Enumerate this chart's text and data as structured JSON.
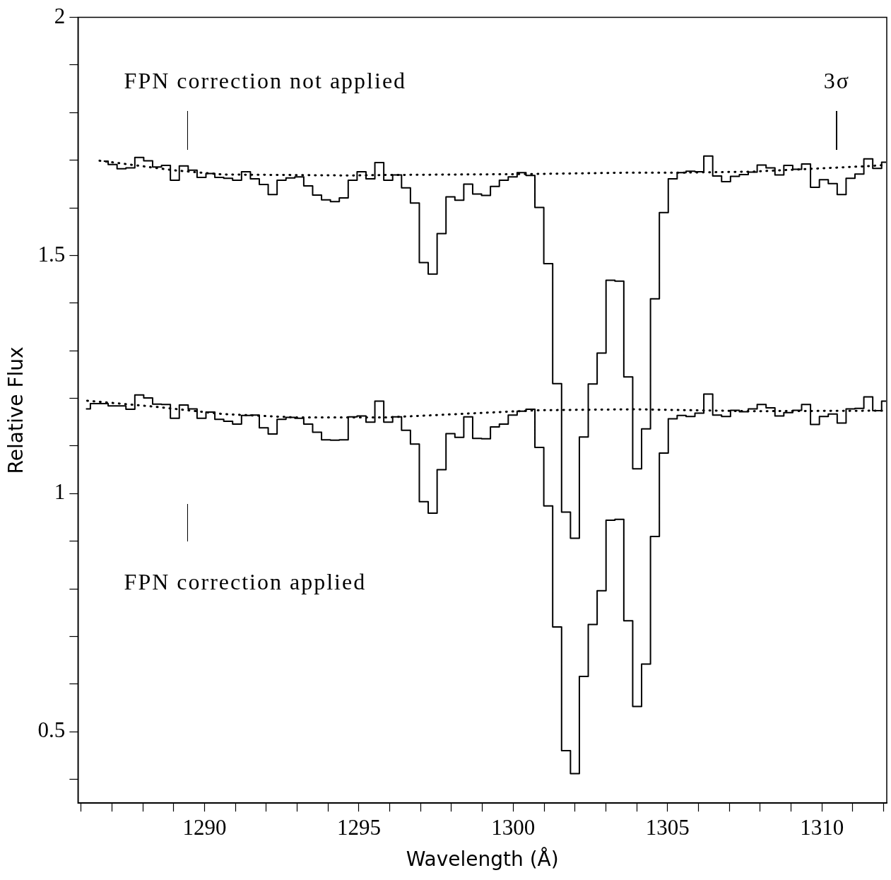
{
  "chart_data": {
    "type": "step",
    "xlabel": "Wavelength (Å)",
    "ylabel": "Relative Flux",
    "grid": false,
    "legend": false,
    "marker": "none",
    "xlim": [
      1285.9,
      1312.1
    ],
    "xticks": [
      {
        "value": 1286,
        "label": null
      },
      {
        "value": 1287,
        "label": null
      },
      {
        "value": 1288,
        "label": null
      },
      {
        "value": 1289,
        "label": null
      },
      1290,
      {
        "value": 1291,
        "label": null
      },
      {
        "value": 1292,
        "label": null
      },
      {
        "value": 1293,
        "label": null
      },
      {
        "value": 1294,
        "label": null
      },
      1295,
      {
        "value": 1296,
        "label": null
      },
      {
        "value": 1297,
        "label": null
      },
      {
        "value": 1298,
        "label": null
      },
      {
        "value": 1299,
        "label": null
      },
      1300,
      {
        "value": 1301,
        "label": null
      },
      {
        "value": 1302,
        "label": null
      },
      {
        "value": 1303,
        "label": null
      },
      {
        "value": 1304,
        "label": null
      },
      1305,
      {
        "value": 1306,
        "label": null
      },
      {
        "value": 1307,
        "label": null
      },
      {
        "value": 1308,
        "label": null
      },
      {
        "value": 1309,
        "label": null
      },
      1310,
      {
        "value": 1311,
        "label": null
      },
      {
        "value": 1312,
        "label": null
      }
    ],
    "ylim": [
      0.35,
      2
    ],
    "yticks": [
      {
        "value": 0.4,
        "label": null
      },
      0.5,
      {
        "value": 0.6,
        "label": null
      },
      {
        "value": 0.7,
        "label": null
      },
      {
        "value": 0.8,
        "label": null
      },
      {
        "value": 0.9,
        "label": null
      },
      1,
      {
        "value": 1.1,
        "label": null
      },
      {
        "value": 1.2,
        "label": null
      },
      {
        "value": 1.3,
        "label": null
      },
      {
        "value": 1.4,
        "label": null
      },
      1.5,
      {
        "value": 1.6,
        "label": null
      },
      {
        "value": 1.7,
        "label": null
      },
      {
        "value": 1.8,
        "label": null
      },
      {
        "value": 1.9,
        "label": null
      },
      2
    ],
    "annotations": [
      "FPN correction not applied",
      "3σ",
      "FPN correction applied"
    ],
    "x": [
      1286.158,
      1286.446,
      1286.734,
      1287.022,
      1287.31,
      1287.598,
      1287.886,
      1288.174,
      1288.462,
      1288.75,
      1289.038,
      1289.326,
      1289.614,
      1289.902,
      1290.19,
      1290.478,
      1290.766,
      1291.054,
      1291.342,
      1291.63,
      1291.918,
      1292.206,
      1292.494,
      1292.782,
      1293.07,
      1293.358,
      1293.646,
      1293.934,
      1294.222,
      1294.51,
      1294.798,
      1295.086,
      1295.374,
      1295.662,
      1295.95,
      1296.238,
      1296.526,
      1296.814,
      1297.102,
      1297.39,
      1297.678,
      1297.966,
      1298.254,
      1298.542,
      1298.83,
      1299.118,
      1299.406,
      1299.694,
      1299.982,
      1300.27,
      1300.558,
      1300.846,
      1301.134,
      1301.422,
      1301.71,
      1301.998,
      1302.286,
      1302.574,
      1302.862,
      1303.15,
      1303.438,
      1303.726,
      1304.014,
      1304.302,
      1304.59,
      1304.878,
      1305.166,
      1305.454,
      1305.742,
      1306.03,
      1306.318,
      1306.606,
      1306.894,
      1307.182,
      1307.47,
      1307.758,
      1308.046,
      1308.334,
      1308.622,
      1308.91,
      1309.198,
      1309.486,
      1309.774,
      1310.062,
      1310.35,
      1310.638,
      1310.926,
      1311.214,
      1311.502,
      1311.79,
      1312.078
    ],
    "series": [
      {
        "color": "#000000",
        "values": [
          null,
          null,
          1.698,
          1.691,
          1.682,
          1.684,
          1.706,
          1.699,
          1.686,
          1.689,
          1.658,
          1.688,
          1.679,
          1.664,
          1.672,
          1.664,
          1.662,
          1.658,
          1.676,
          1.661,
          1.649,
          1.628,
          1.658,
          1.663,
          1.665,
          1.646,
          1.627,
          1.617,
          1.613,
          1.621,
          1.658,
          1.676,
          1.661,
          1.695,
          1.658,
          1.669,
          1.642,
          1.61,
          1.485,
          1.461,
          1.546,
          1.623,
          1.616,
          1.65,
          1.629,
          1.626,
          1.645,
          1.658,
          1.665,
          1.674,
          1.668,
          1.601,
          1.483,
          1.231,
          0.961,
          0.906,
          1.119,
          1.23,
          1.295,
          1.448,
          1.446,
          1.245,
          1.052,
          1.136,
          1.409,
          1.59,
          1.661,
          1.674,
          1.677,
          1.676,
          1.709,
          1.667,
          1.655,
          1.666,
          1.67,
          1.675,
          1.69,
          1.684,
          1.669,
          1.689,
          1.681,
          1.692,
          1.643,
          1.659,
          1.651,
          1.628,
          1.662,
          1.671,
          1.703,
          1.683,
          1.696
        ]
      },
      {
        "color": "#000000",
        "values": [
          1.178,
          1.189,
          1.189,
          1.184,
          1.184,
          1.177,
          1.207,
          1.201,
          1.188,
          1.187,
          1.158,
          1.186,
          1.178,
          1.158,
          1.171,
          1.156,
          1.152,
          1.146,
          1.164,
          1.165,
          1.138,
          1.125,
          1.156,
          1.16,
          1.158,
          1.146,
          1.129,
          1.113,
          1.112,
          1.113,
          1.161,
          1.163,
          1.15,
          1.194,
          1.15,
          1.161,
          1.133,
          1.104,
          0.983,
          0.959,
          1.05,
          1.126,
          1.118,
          1.161,
          1.116,
          1.115,
          1.14,
          1.146,
          1.165,
          1.173,
          1.177,
          1.097,
          0.974,
          0.72,
          0.46,
          0.412,
          0.616,
          0.725,
          0.796,
          0.944,
          0.946,
          0.733,
          0.553,
          0.642,
          0.91,
          1.085,
          1.157,
          1.164,
          1.162,
          1.169,
          1.209,
          1.165,
          1.162,
          1.175,
          1.172,
          1.178,
          1.187,
          1.18,
          1.163,
          1.17,
          1.175,
          1.187,
          1.145,
          1.162,
          1.167,
          1.148,
          1.178,
          1.179,
          1.203,
          1.174,
          1.194
        ]
      },
      {
        "type": "line",
        "line_style": "dotted",
        "color": "#000000",
        "x": [
          1286.6,
          1287.1,
          1289.0,
          1290.6,
          1294.8,
          1295.8,
          1300.5,
          1303.8,
          1305.5,
          1307.7,
          1311.6,
          1312.0
        ],
        "values": [
          1.699,
          1.695,
          1.679,
          1.67,
          1.668,
          1.669,
          1.671,
          1.674,
          1.674,
          1.676,
          1.688,
          1.69
        ]
      },
      {
        "type": "line",
        "line_style": "dotted",
        "color": "#000000",
        "x": [
          1286.2,
          1288.3,
          1290.6,
          1292.9,
          1295.9,
          1298.2,
          1300.8,
          1303.9,
          1307.7,
          1311.6,
          1312.0
        ],
        "values": [
          1.195,
          1.183,
          1.167,
          1.16,
          1.16,
          1.167,
          1.175,
          1.177,
          1.173,
          1.174,
          1.174
        ]
      }
    ]
  }
}
